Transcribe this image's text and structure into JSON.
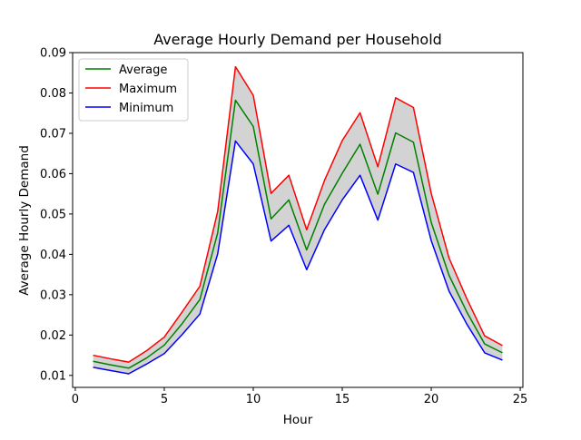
{
  "chart_data": {
    "type": "line",
    "title": "Average Hourly Demand per Household",
    "xlabel": "Hour",
    "ylabel": "Average Hourly Demand",
    "xlim": [
      -0.15,
      25.15
    ],
    "ylim": [
      0.00703,
      0.09
    ],
    "xticks": [
      0,
      5,
      10,
      15,
      20,
      25
    ],
    "xtick_labels": [
      "0",
      "5",
      "10",
      "15",
      "20",
      "25"
    ],
    "yticks": [
      0.01,
      0.02,
      0.03,
      0.04,
      0.05,
      0.06,
      0.07,
      0.08,
      0.09
    ],
    "ytick_labels": [
      "0.01",
      "0.02",
      "0.03",
      "0.04",
      "0.05",
      "0.06",
      "0.07",
      "0.08",
      "0.09"
    ],
    "grid": false,
    "legend_position": "top-left",
    "x": [
      1,
      2,
      3,
      4,
      5,
      6,
      7,
      8,
      9,
      10,
      11,
      12,
      13,
      14,
      15,
      16,
      17,
      18,
      19,
      20,
      21,
      22,
      23,
      24
    ],
    "series": [
      {
        "name": "Average",
        "color": "#008000",
        "values": [
          0.0135,
          0.0126,
          0.0118,
          0.0143,
          0.0175,
          0.0228,
          0.0288,
          0.0453,
          0.0782,
          0.0717,
          0.0488,
          0.0535,
          0.0411,
          0.0524,
          0.0601,
          0.0673,
          0.0549,
          0.0701,
          0.0678,
          0.0479,
          0.0348,
          0.0257,
          0.0178,
          0.0156
        ]
      },
      {
        "name": "Maximum",
        "color": "#ff0000",
        "values": [
          0.015,
          0.0141,
          0.0133,
          0.0161,
          0.0195,
          0.0257,
          0.0321,
          0.0506,
          0.0865,
          0.0794,
          0.0551,
          0.0596,
          0.0461,
          0.0583,
          0.0682,
          0.0751,
          0.0617,
          0.0788,
          0.0764,
          0.0551,
          0.0391,
          0.029,
          0.0198,
          0.0174
        ]
      },
      {
        "name": "Minimum",
        "color": "#0000ff",
        "values": [
          0.012,
          0.0112,
          0.0104,
          0.0128,
          0.0154,
          0.0201,
          0.0252,
          0.0401,
          0.0681,
          0.0624,
          0.0433,
          0.0472,
          0.0362,
          0.0461,
          0.0535,
          0.0596,
          0.0485,
          0.0624,
          0.0603,
          0.0434,
          0.0309,
          0.0227,
          0.0156,
          0.0138
        ]
      }
    ],
    "band": {
      "between": [
        "Minimum",
        "Maximum"
      ],
      "color": "#d3d3d3"
    }
  }
}
